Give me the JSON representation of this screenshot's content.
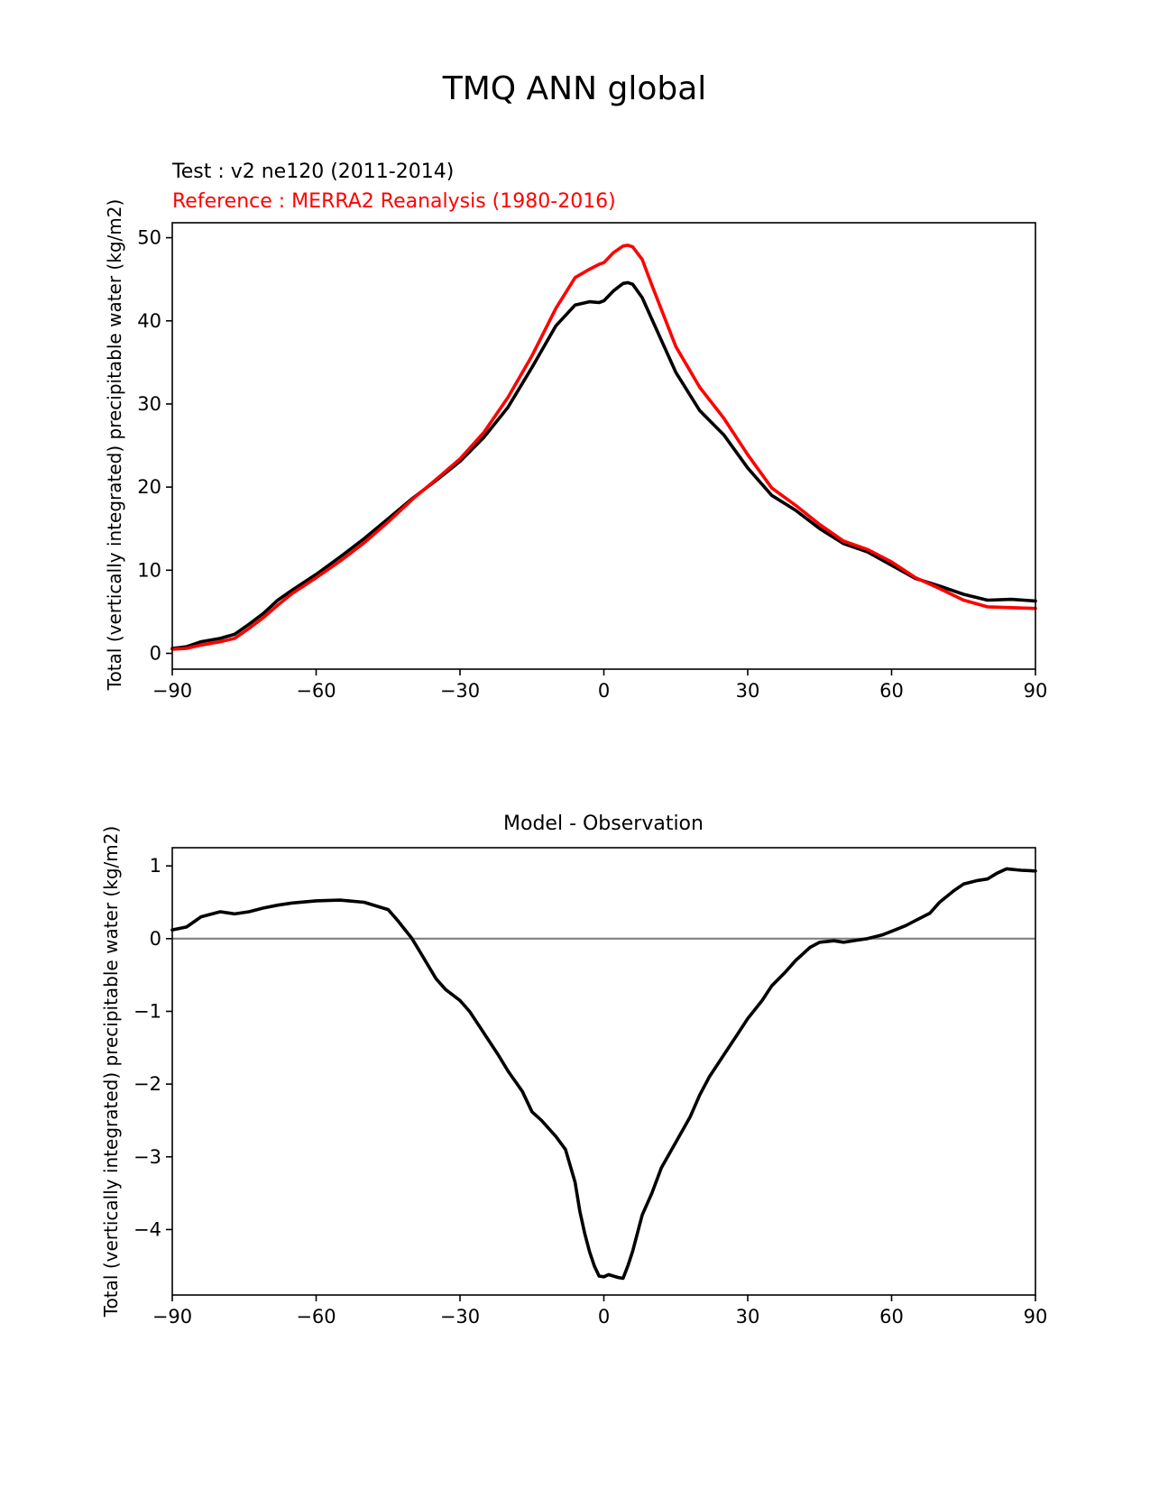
{
  "figure": {
    "title": "TMQ ANN global"
  },
  "chart_data": [
    {
      "type": "line",
      "title": "",
      "test_label": "Test : v2 ne120 (2011-2014)",
      "reference_label": "Reference : MERRA2 Reanalysis (1980-2016)",
      "xlabel": "",
      "ylabel": "Total (vertically integrated) precipitable water (kg/m2)",
      "xlim": [
        -90,
        90
      ],
      "ylim": [
        -1.9,
        51.8
      ],
      "xticks": [
        -90,
        -60,
        -30,
        0,
        30,
        60,
        90
      ],
      "xtick_labels": [
        "−90",
        "−60",
        "−30",
        "0",
        "30",
        "60",
        "90"
      ],
      "yticks": [
        0,
        10,
        20,
        30,
        40,
        50
      ],
      "ytick_labels": [
        "0",
        "10",
        "20",
        "30",
        "40",
        "50"
      ],
      "grid": false,
      "colors": {
        "test": "#000000",
        "reference": "#ff0000"
      },
      "x": [
        -90,
        -87,
        -84,
        -80,
        -77,
        -74,
        -71,
        -68,
        -65,
        -60,
        -55,
        -50,
        -45,
        -40,
        -35,
        -30,
        -25,
        -20,
        -15,
        -10,
        -6,
        -3,
        -1,
        0,
        2,
        4,
        5,
        6,
        8,
        10,
        15,
        20,
        25,
        30,
        35,
        40,
        45,
        50,
        55,
        60,
        65,
        70,
        75,
        80,
        85,
        90
      ],
      "series": [
        {
          "key": "test",
          "values": [
            0.6,
            0.8,
            1.4,
            1.8,
            2.3,
            3.5,
            4.8,
            6.4,
            7.6,
            9.5,
            11.6,
            13.8,
            16.2,
            18.6,
            20.8,
            23.1,
            26.0,
            29.6,
            34.4,
            39.4,
            41.9,
            42.3,
            42.2,
            42.4,
            43.6,
            44.5,
            44.6,
            44.4,
            42.8,
            40.2,
            33.8,
            29.2,
            26.3,
            22.3,
            19.0,
            17.2,
            15.0,
            13.2,
            12.2,
            10.6,
            9.0,
            8.1,
            7.1,
            6.4,
            6.5,
            6.3
          ]
        },
        {
          "key": "reference",
          "values": [
            0.5,
            0.6,
            1.0,
            1.4,
            1.8,
            3.0,
            4.3,
            5.8,
            7.2,
            9.1,
            11.1,
            13.3,
            15.8,
            18.5,
            20.9,
            23.4,
            26.6,
            30.8,
            35.8,
            41.5,
            45.2,
            46.2,
            46.8,
            47.0,
            48.2,
            49.0,
            49.1,
            48.9,
            47.4,
            44.3,
            36.9,
            32.0,
            28.3,
            23.9,
            19.9,
            17.8,
            15.5,
            13.5,
            12.5,
            11.0,
            9.1,
            7.8,
            6.4,
            5.6,
            5.5,
            5.4
          ]
        }
      ]
    },
    {
      "type": "line",
      "title": "Model - Observation",
      "xlabel": "",
      "ylabel": "Total (vertically integrated) precipitable water (kg/m2)",
      "xlim": [
        -90,
        90
      ],
      "ylim": [
        -4.9,
        1.25
      ],
      "xticks": [
        -90,
        -60,
        -30,
        0,
        30,
        60,
        90
      ],
      "xtick_labels": [
        "−90",
        "−60",
        "−30",
        "0",
        "30",
        "60",
        "90"
      ],
      "yticks": [
        -4,
        -3,
        -2,
        -1,
        0,
        1
      ],
      "ytick_labels": [
        "−4",
        "−3",
        "−2",
        "−1",
        "0",
        "1"
      ],
      "grid": false,
      "zero_line": 0,
      "colors": {
        "diff": "#000000",
        "zero_line": "#808080"
      },
      "x": [
        -90,
        -87,
        -84,
        -80,
        -77,
        -74,
        -71,
        -68,
        -65,
        -60,
        -55,
        -50,
        -45,
        -43,
        -40,
        -38,
        -35,
        -33,
        -30,
        -28,
        -25,
        -22,
        -20,
        -17,
        -15,
        -13,
        -10,
        -8,
        -6,
        -5,
        -4,
        -3,
        -2,
        -1,
        0,
        1,
        2,
        3,
        4,
        5,
        6,
        8,
        10,
        12,
        15,
        18,
        20,
        22,
        25,
        28,
        30,
        33,
        35,
        38,
        40,
        43,
        45,
        48,
        50,
        53,
        55,
        58,
        60,
        63,
        65,
        68,
        70,
        73,
        75,
        78,
        80,
        82,
        84,
        87,
        90
      ],
      "series": [
        {
          "key": "diff",
          "values": [
            0.12,
            0.16,
            0.3,
            0.37,
            0.34,
            0.37,
            0.42,
            0.46,
            0.49,
            0.52,
            0.53,
            0.5,
            0.4,
            0.25,
            0.0,
            -0.22,
            -0.55,
            -0.7,
            -0.85,
            -1.0,
            -1.3,
            -1.6,
            -1.82,
            -2.1,
            -2.38,
            -2.5,
            -2.72,
            -2.9,
            -3.35,
            -3.75,
            -4.05,
            -4.3,
            -4.5,
            -4.64,
            -4.65,
            -4.62,
            -4.64,
            -4.66,
            -4.67,
            -4.5,
            -4.3,
            -3.8,
            -3.5,
            -3.15,
            -2.8,
            -2.45,
            -2.15,
            -1.9,
            -1.6,
            -1.3,
            -1.1,
            -0.85,
            -0.65,
            -0.45,
            -0.3,
            -0.12,
            -0.05,
            -0.03,
            -0.05,
            -0.02,
            0.0,
            0.05,
            0.1,
            0.18,
            0.25,
            0.35,
            0.5,
            0.66,
            0.75,
            0.8,
            0.82,
            0.9,
            0.96,
            0.94,
            0.93
          ]
        }
      ]
    }
  ]
}
